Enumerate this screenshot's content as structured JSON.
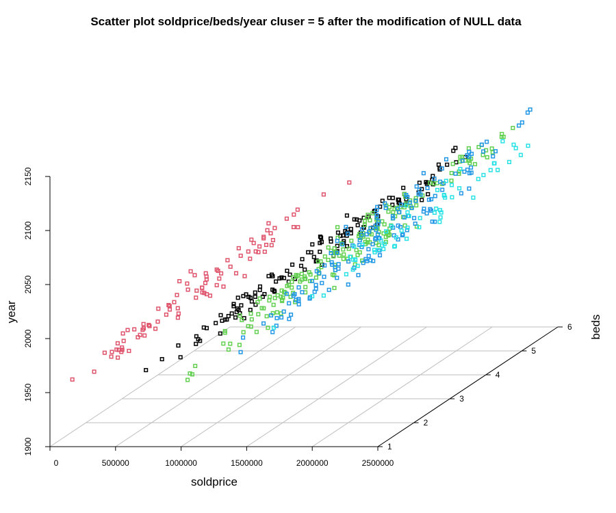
{
  "chart_data": {
    "type": "scatter",
    "subtype": "3d-scatter-perspective",
    "title": "Scatter plot soldprice/beds/year cluser = 5 after the modification of NULL data",
    "xlabel": "soldprice",
    "ylabel": "beds",
    "zlabel": "year",
    "x_ticks": [
      "0",
      "500000",
      "1000000",
      "1500000",
      "2000000",
      "2500000"
    ],
    "y_ticks": [
      "1",
      "2",
      "3",
      "4",
      "5",
      "6"
    ],
    "z_ticks": [
      "1900",
      "1950",
      "2000",
      "2050",
      "2100",
      "2150"
    ],
    "xlim": [
      0,
      2500000
    ],
    "ylim": [
      1,
      6
    ],
    "zlim": [
      1900,
      2150
    ],
    "grid": true,
    "colors": {
      "cluster1": "#DF536B",
      "cluster2": "#000000",
      "cluster3": "#61D04F",
      "cluster4": "#2297E6",
      "cluster5": "#28E2E5",
      "grid": "#bebebe",
      "axis": "#000000"
    },
    "series": [
      {
        "cluster": 1,
        "color": "#DF536B",
        "count": 90,
        "x_range": [
          150000,
          1200000
        ],
        "y_range": [
          1,
          5
        ],
        "z_range": [
          1960,
          2060
        ]
      },
      {
        "cluster": 2,
        "color": "#000000",
        "count": 135,
        "x_range": [
          700000,
          2000000
        ],
        "y_range": [
          1,
          6
        ],
        "z_range": [
          1965,
          2080
        ]
      },
      {
        "cluster": 3,
        "color": "#61D04F",
        "count": 190,
        "x_range": [
          1000000,
          2200000
        ],
        "y_range": [
          1,
          6
        ],
        "z_range": [
          1965,
          2090
        ]
      },
      {
        "cluster": 4,
        "color": "#2297E6",
        "count": 150,
        "x_range": [
          1400000,
          2300000
        ],
        "y_range": [
          1,
          6
        ],
        "z_range": [
          1985,
          2100
        ]
      },
      {
        "cluster": 5,
        "color": "#28E2E5",
        "count": 60,
        "x_range": [
          1700000,
          2500000
        ],
        "y_range": [
          1,
          6
        ],
        "z_range": [
          2010,
          2100
        ]
      }
    ]
  }
}
